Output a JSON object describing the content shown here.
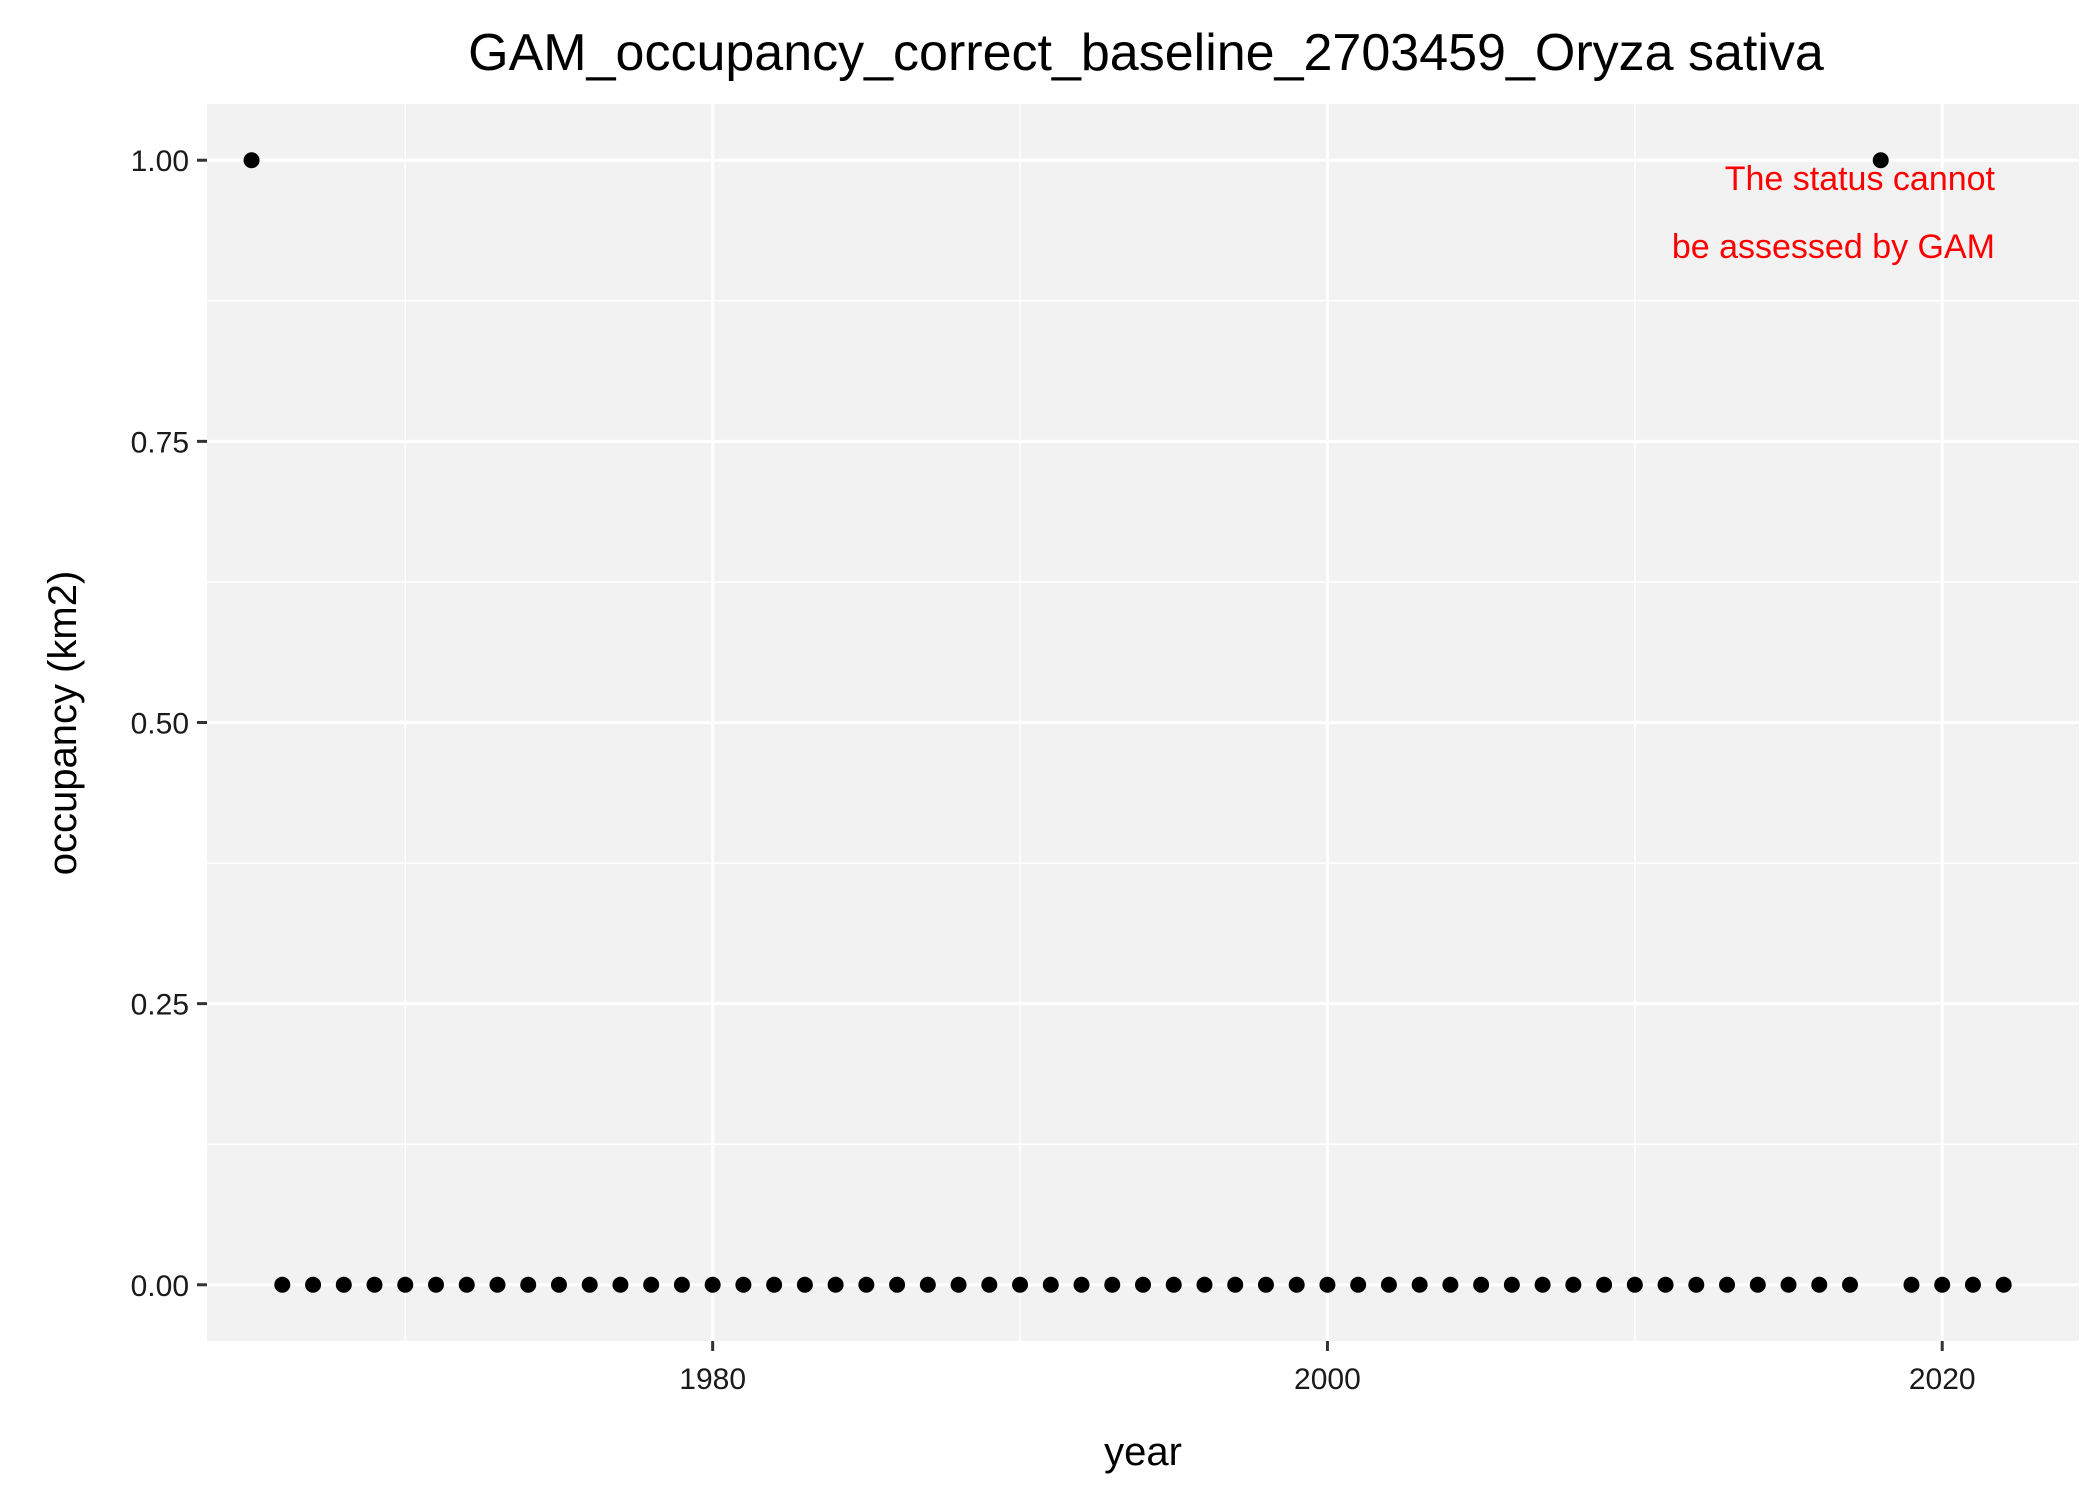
{
  "chart_data": {
    "type": "scatter",
    "title": "GAM_occupancy_correct_baseline_2703459_Oryza sativa",
    "xlabel": "year",
    "ylabel": "occupancy (km2)",
    "xlim": [
      1963.55,
      2024.45
    ],
    "ylim": [
      -0.05,
      1.05
    ],
    "x_ticks": [
      1980,
      2000,
      2020
    ],
    "x_tick_labels": [
      "1980",
      "2000",
      "2020"
    ],
    "x_minor_ticks": [
      1970,
      1990,
      2010
    ],
    "y_ticks": [
      0,
      0.25,
      0.5,
      0.75,
      1.0
    ],
    "y_tick_labels": [
      "0.00",
      "0.25",
      "0.50",
      "0.75",
      "1.00"
    ],
    "y_minor_ticks": [
      0.125,
      0.375,
      0.625,
      0.875
    ],
    "grid": true,
    "legend": "none",
    "series": [
      {
        "points": [
          {
            "x": 1965,
            "y": 1
          },
          {
            "x": 1966,
            "y": 0
          },
          {
            "x": 1967,
            "y": 0
          },
          {
            "x": 1968,
            "y": 0
          },
          {
            "x": 1969,
            "y": 0
          },
          {
            "x": 1970,
            "y": 0
          },
          {
            "x": 1971,
            "y": 0
          },
          {
            "x": 1972,
            "y": 0
          },
          {
            "x": 1973,
            "y": 0
          },
          {
            "x": 1974,
            "y": 0
          },
          {
            "x": 1975,
            "y": 0
          },
          {
            "x": 1976,
            "y": 0
          },
          {
            "x": 1977,
            "y": 0
          },
          {
            "x": 1978,
            "y": 0
          },
          {
            "x": 1979,
            "y": 0
          },
          {
            "x": 1980,
            "y": 0
          },
          {
            "x": 1981,
            "y": 0
          },
          {
            "x": 1982,
            "y": 0
          },
          {
            "x": 1983,
            "y": 0
          },
          {
            "x": 1984,
            "y": 0
          },
          {
            "x": 1985,
            "y": 0
          },
          {
            "x": 1986,
            "y": 0
          },
          {
            "x": 1987,
            "y": 0
          },
          {
            "x": 1988,
            "y": 0
          },
          {
            "x": 1989,
            "y": 0
          },
          {
            "x": 1990,
            "y": 0
          },
          {
            "x": 1991,
            "y": 0
          },
          {
            "x": 1992,
            "y": 0
          },
          {
            "x": 1993,
            "y": 0
          },
          {
            "x": 1994,
            "y": 0
          },
          {
            "x": 1995,
            "y": 0
          },
          {
            "x": 1996,
            "y": 0
          },
          {
            "x": 1997,
            "y": 0
          },
          {
            "x": 1998,
            "y": 0
          },
          {
            "x": 1999,
            "y": 0
          },
          {
            "x": 2000,
            "y": 0
          },
          {
            "x": 2001,
            "y": 0
          },
          {
            "x": 2002,
            "y": 0
          },
          {
            "x": 2003,
            "y": 0
          },
          {
            "x": 2004,
            "y": 0
          },
          {
            "x": 2005,
            "y": 0
          },
          {
            "x": 2006,
            "y": 0
          },
          {
            "x": 2007,
            "y": 0
          },
          {
            "x": 2008,
            "y": 0
          },
          {
            "x": 2009,
            "y": 0
          },
          {
            "x": 2010,
            "y": 0
          },
          {
            "x": 2011,
            "y": 0
          },
          {
            "x": 2012,
            "y": 0
          },
          {
            "x": 2013,
            "y": 0
          },
          {
            "x": 2014,
            "y": 0
          },
          {
            "x": 2015,
            "y": 0
          },
          {
            "x": 2016,
            "y": 0
          },
          {
            "x": 2017,
            "y": 0
          },
          {
            "x": 2018,
            "y": 1
          },
          {
            "x": 2019,
            "y": 0
          },
          {
            "x": 2020,
            "y": 0
          },
          {
            "x": 2021,
            "y": 0
          },
          {
            "x": 2022,
            "y": 0
          }
        ]
      }
    ],
    "annotation": {
      "lines": [
        "The status cannot",
        "be assessed by GAM"
      ],
      "color": "#ff0000",
      "placement": "top-right"
    },
    "colors": {
      "panel_background": "#f2f2f2",
      "grid": "#ffffff",
      "point": "#000000",
      "tick": "#333333"
    }
  }
}
